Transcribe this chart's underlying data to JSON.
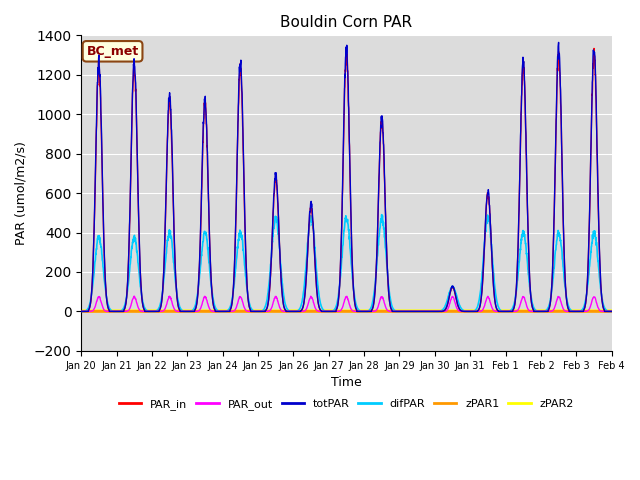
{
  "title": "Bouldin Corn PAR",
  "xlabel": "Time",
  "ylabel": "PAR (umol/m2/s)",
  "ylim": [
    -200,
    1400
  ],
  "yticks": [
    -200,
    0,
    200,
    400,
    600,
    800,
    1000,
    1200,
    1400
  ],
  "annotation": "BC_met",
  "bg_color": "#dcdcdc",
  "colors": {
    "PAR_in": "#ff0000",
    "PAR_out": "#ff00ff",
    "totPAR": "#0000cc",
    "difPAR": "#00ccff",
    "zPAR1": "#ff9900",
    "zPAR2": "#ffff00"
  },
  "n_days": 15,
  "start_day": 20,
  "peaks_totPAR": [
    1.0,
    1.0,
    0.87,
    0.85,
    1.0,
    0.55,
    0.43,
    1.05,
    0.78,
    0.0,
    0.1,
    0.48,
    1.0,
    1.05,
    1.05
  ],
  "peaks_difPAR": [
    0.3,
    0.3,
    0.32,
    0.32,
    0.32,
    0.38,
    0.38,
    0.38,
    0.38,
    0.0,
    0.1,
    0.38,
    0.32,
    0.32,
    0.32
  ],
  "peaks_PARout": [
    0.06,
    0.06,
    0.06,
    0.06,
    0.06,
    0.06,
    0.06,
    0.06,
    0.06,
    0.0,
    0.06,
    0.06,
    0.06,
    0.06,
    0.06
  ],
  "max_par": 1300,
  "legend_labels": [
    "PAR_in",
    "PAR_out",
    "totPAR",
    "difPAR",
    "zPAR1",
    "zPAR2"
  ]
}
